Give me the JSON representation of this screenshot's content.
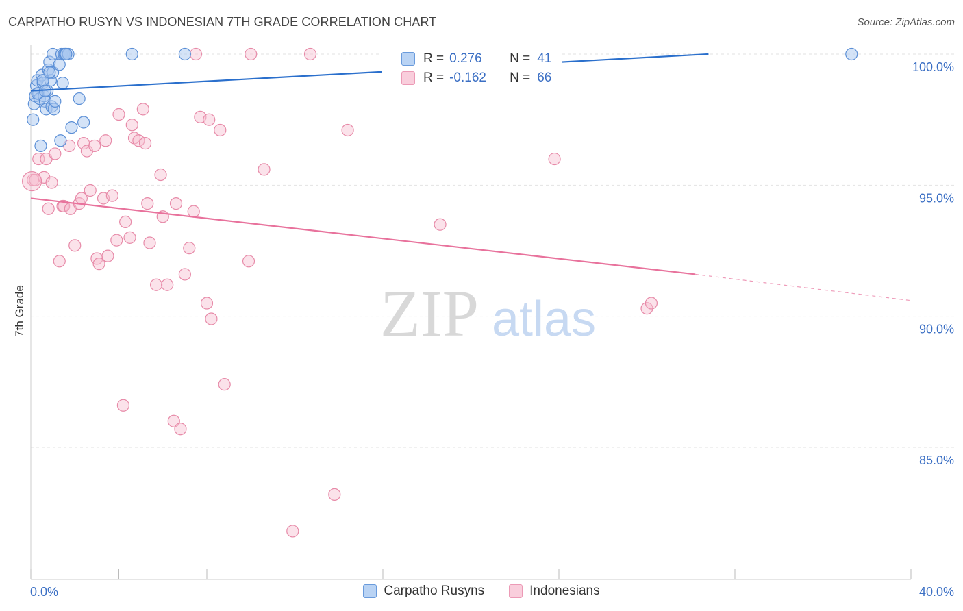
{
  "title": "CARPATHO RUSYN VS INDONESIAN 7TH GRADE CORRELATION CHART",
  "source": "Source: ZipAtlas.com",
  "watermark": {
    "zip": "ZIP",
    "atlas": "atlas"
  },
  "colors": {
    "blue_fill": "#a9c8f0",
    "blue_stroke": "#5b8fd6",
    "blue_line": "#2a6fcc",
    "pink_fill": "#f6bfd0",
    "pink_stroke": "#e78aa8",
    "pink_line": "#e8729c",
    "tick_label": "#3b6fc4",
    "grid": "#e2e2e2"
  },
  "legend": {
    "rows": [
      {
        "r_label": "R =",
        "r_value": "0.276",
        "n_label": "N =",
        "n_value": "41"
      },
      {
        "r_label": "R =",
        "r_value": "-0.162",
        "n_label": "N =",
        "n_value": "66"
      }
    ]
  },
  "bottom_legend": [
    "Carpatho Rusyns",
    "Indonesians"
  ],
  "chart_data": {
    "type": "scatter",
    "title": "CARPATHO RUSYN VS INDONESIAN 7TH GRADE CORRELATION CHART",
    "xlabel": "",
    "ylabel": "7th Grade",
    "xlim": [
      0,
      40
    ],
    "ylim": [
      80.6,
      100.5
    ],
    "x_tick_labels": [
      "0.0%",
      "40.0%"
    ],
    "y_ticks": [
      100,
      95,
      90,
      85
    ],
    "y_tick_labels": [
      "100.0%",
      "95.0%",
      "90.0%",
      "85.0%"
    ],
    "series": [
      {
        "name": "Carpatho Rusyns",
        "r": 0.276,
        "n": 41,
        "trend": {
          "x0": 0.0,
          "y0": 98.6,
          "x1": 30.8,
          "y1": 100.0
        },
        "points": [
          {
            "x": 0.1,
            "y": 97.5
          },
          {
            "x": 0.15,
            "y": 98.1
          },
          {
            "x": 0.2,
            "y": 98.4
          },
          {
            "x": 0.25,
            "y": 98.8
          },
          {
            "x": 0.3,
            "y": 99.0
          },
          {
            "x": 0.35,
            "y": 98.5
          },
          {
            "x": 0.4,
            "y": 98.3
          },
          {
            "x": 0.45,
            "y": 96.5
          },
          {
            "x": 0.5,
            "y": 99.2
          },
          {
            "x": 0.55,
            "y": 98.9
          },
          {
            "x": 0.6,
            "y": 98.4
          },
          {
            "x": 0.65,
            "y": 98.2
          },
          {
            "x": 0.7,
            "y": 97.9
          },
          {
            "x": 0.75,
            "y": 98.6
          },
          {
            "x": 0.8,
            "y": 99.4
          },
          {
            "x": 0.85,
            "y": 99.7
          },
          {
            "x": 0.9,
            "y": 99.0
          },
          {
            "x": 0.95,
            "y": 98.0
          },
          {
            "x": 1.0,
            "y": 99.3
          },
          {
            "x": 1.05,
            "y": 97.9
          },
          {
            "x": 1.1,
            "y": 98.2
          },
          {
            "x": 1.0,
            "y": 100.0
          },
          {
            "x": 1.3,
            "y": 99.6
          },
          {
            "x": 1.35,
            "y": 96.7
          },
          {
            "x": 1.4,
            "y": 100.0
          },
          {
            "x": 1.45,
            "y": 98.9
          },
          {
            "x": 1.5,
            "y": 100.0
          },
          {
            "x": 1.55,
            "y": 100.0
          },
          {
            "x": 1.6,
            "y": 100.0
          },
          {
            "x": 1.7,
            "y": 100.0
          },
          {
            "x": 1.85,
            "y": 97.2
          },
          {
            "x": 2.2,
            "y": 98.3
          },
          {
            "x": 2.4,
            "y": 97.4
          },
          {
            "x": 4.6,
            "y": 100.0
          },
          {
            "x": 7.0,
            "y": 100.0
          },
          {
            "x": 37.3,
            "y": 100.0
          },
          {
            "x": 0.55,
            "y": 99.0
          },
          {
            "x": 0.3,
            "y": 98.5
          },
          {
            "x": 0.65,
            "y": 98.6
          },
          {
            "x": 0.85,
            "y": 99.3
          },
          {
            "x": 1.6,
            "y": 100.0
          }
        ]
      },
      {
        "name": "Indonesians",
        "r": -0.162,
        "n": 66,
        "trend": {
          "x0": 0.0,
          "y0": 94.5,
          "x1": 30.2,
          "y1": 91.6,
          "dash_to_x": 40.0,
          "dash_to_y": 90.6
        },
        "points": [
          {
            "x": 0.1,
            "y": 95.2
          },
          {
            "x": 0.2,
            "y": 95.2
          },
          {
            "x": 0.35,
            "y": 96.0
          },
          {
            "x": 0.6,
            "y": 95.3
          },
          {
            "x": 0.7,
            "y": 96.0
          },
          {
            "x": 0.8,
            "y": 94.1
          },
          {
            "x": 0.95,
            "y": 95.1
          },
          {
            "x": 1.1,
            "y": 96.2
          },
          {
            "x": 1.3,
            "y": 92.1
          },
          {
            "x": 1.45,
            "y": 94.2
          },
          {
            "x": 1.5,
            "y": 94.2
          },
          {
            "x": 1.75,
            "y": 96.5
          },
          {
            "x": 1.8,
            "y": 94.1
          },
          {
            "x": 2.0,
            "y": 92.7
          },
          {
            "x": 2.2,
            "y": 94.3
          },
          {
            "x": 2.3,
            "y": 94.5
          },
          {
            "x": 2.4,
            "y": 96.6
          },
          {
            "x": 2.55,
            "y": 96.3
          },
          {
            "x": 2.7,
            "y": 94.8
          },
          {
            "x": 2.9,
            "y": 96.5
          },
          {
            "x": 3.0,
            "y": 92.2
          },
          {
            "x": 3.1,
            "y": 92.0
          },
          {
            "x": 3.3,
            "y": 94.5
          },
          {
            "x": 3.4,
            "y": 96.7
          },
          {
            "x": 3.5,
            "y": 92.3
          },
          {
            "x": 3.7,
            "y": 94.6
          },
          {
            "x": 3.9,
            "y": 92.9
          },
          {
            "x": 4.0,
            "y": 97.7
          },
          {
            "x": 4.2,
            "y": 86.6
          },
          {
            "x": 4.3,
            "y": 93.6
          },
          {
            "x": 4.5,
            "y": 93.0
          },
          {
            "x": 4.6,
            "y": 97.3
          },
          {
            "x": 4.7,
            "y": 96.8
          },
          {
            "x": 4.9,
            "y": 96.7
          },
          {
            "x": 5.1,
            "y": 97.9
          },
          {
            "x": 5.2,
            "y": 96.6
          },
          {
            "x": 5.3,
            "y": 94.3
          },
          {
            "x": 5.4,
            "y": 92.8
          },
          {
            "x": 5.7,
            "y": 91.2
          },
          {
            "x": 5.9,
            "y": 95.4
          },
          {
            "x": 6.0,
            "y": 93.8
          },
          {
            "x": 6.2,
            "y": 91.2
          },
          {
            "x": 6.5,
            "y": 86.0
          },
          {
            "x": 6.6,
            "y": 94.3
          },
          {
            "x": 6.8,
            "y": 85.7
          },
          {
            "x": 7.0,
            "y": 91.6
          },
          {
            "x": 7.2,
            "y": 92.6
          },
          {
            "x": 7.4,
            "y": 94.0
          },
          {
            "x": 7.5,
            "y": 100.0
          },
          {
            "x": 7.7,
            "y": 97.6
          },
          {
            "x": 8.0,
            "y": 90.5
          },
          {
            "x": 8.1,
            "y": 97.5
          },
          {
            "x": 8.2,
            "y": 89.9
          },
          {
            "x": 8.8,
            "y": 87.4
          },
          {
            "x": 8.6,
            "y": 97.1
          },
          {
            "x": 10.0,
            "y": 100.0
          },
          {
            "x": 9.9,
            "y": 92.1
          },
          {
            "x": 10.6,
            "y": 95.6
          },
          {
            "x": 11.9,
            "y": 81.8
          },
          {
            "x": 12.7,
            "y": 100.0
          },
          {
            "x": 13.8,
            "y": 83.2
          },
          {
            "x": 14.4,
            "y": 97.1
          },
          {
            "x": 18.6,
            "y": 93.5
          },
          {
            "x": 23.8,
            "y": 96.0
          },
          {
            "x": 28.0,
            "y": 90.3
          },
          {
            "x": 28.2,
            "y": 90.5
          }
        ]
      }
    ]
  }
}
